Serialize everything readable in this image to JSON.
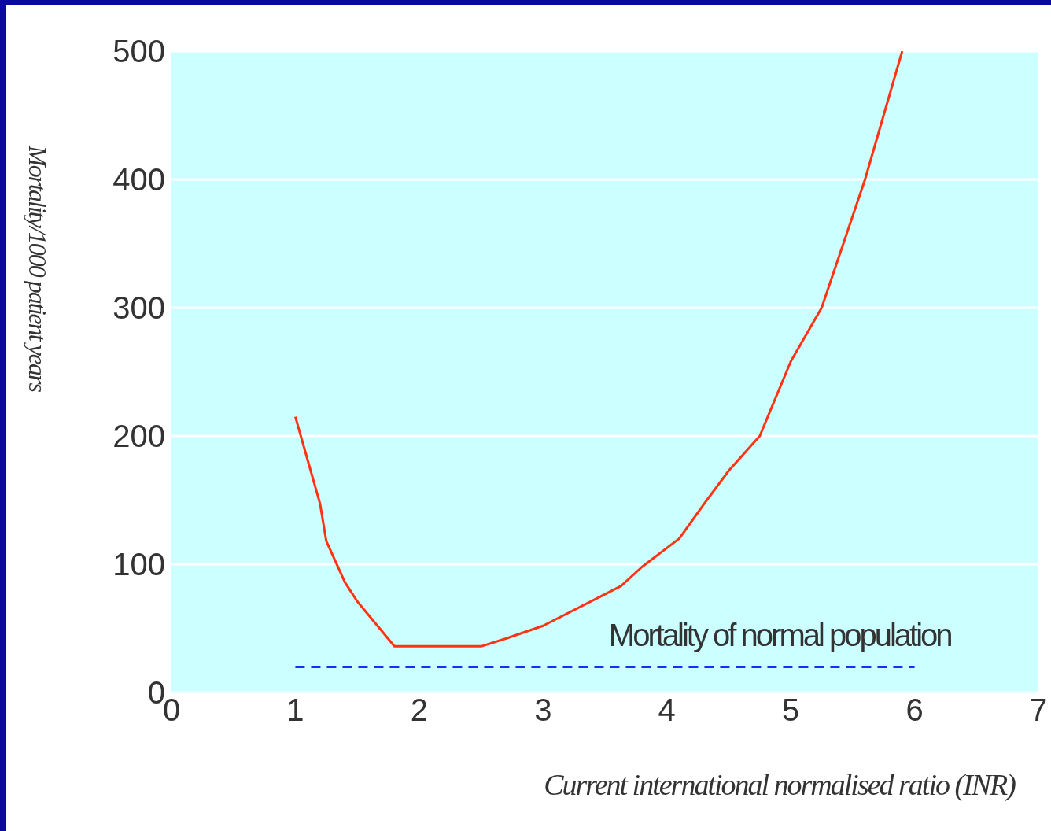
{
  "chart_data": {
    "type": "line",
    "xlabel": "Current international normalised ratio (INR)",
    "ylabel": "Mortality/1000 patient years",
    "xlim": [
      0,
      7
    ],
    "xticks": [
      0,
      1,
      2,
      3,
      4,
      5,
      6,
      7
    ],
    "ylim": [
      0,
      500
    ],
    "yticks": [
      0,
      100,
      200,
      300,
      400,
      500
    ],
    "grid": "y",
    "marker": "none",
    "series": [
      {
        "color": "#ff3311",
        "line_style": "solid",
        "x": [
          1,
          1.1,
          1.2,
          1.25,
          1.4,
          1.5,
          1.8,
          2.5,
          2.7,
          3,
          3.63,
          3.8,
          4.1,
          4.3,
          4.5,
          4.75,
          5,
          5.25,
          5.6,
          5.9
        ],
        "values": [
          215,
          181,
          147,
          118,
          86,
          71,
          36,
          36,
          42,
          52,
          83,
          98,
          120,
          147,
          173,
          200,
          258,
          300,
          400,
          500
        ]
      },
      {
        "name": "Mortality of normal population",
        "color": "#1133ee",
        "line_style": "dashed",
        "x": [
          1,
          6
        ],
        "values": [
          20,
          20
        ]
      }
    ]
  }
}
